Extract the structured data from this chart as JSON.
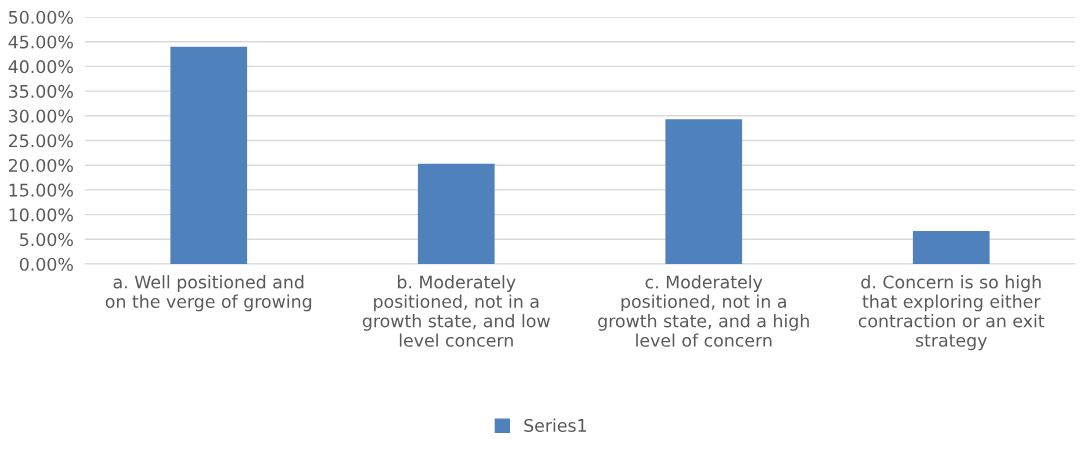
{
  "chart_data": {
    "type": "bar",
    "categories": [
      "a. Well positioned and on the verge of growing",
      "b. Moderately positioned, not in a growth state, and low level concern",
      "c. Moderately positioned, not in a growth state, and a high level of concern",
      "d. Concern is so high that exploring either contraction or an exit strategy"
    ],
    "series": [
      {
        "name": "Series1",
        "color": "#4f81bd",
        "values": [
          44.0,
          20.3,
          29.3,
          6.7
        ]
      }
    ],
    "ylim": [
      0,
      50
    ],
    "yticks": [
      {
        "value": 0,
        "label": "0.00%"
      },
      {
        "value": 5,
        "label": "5.00%"
      },
      {
        "value": 10,
        "label": "10.00%"
      },
      {
        "value": 15,
        "label": "15.00%"
      },
      {
        "value": 20,
        "label": "20.00%"
      },
      {
        "value": 25,
        "label": "25.00%"
      },
      {
        "value": 30,
        "label": "30.00%"
      },
      {
        "value": 35,
        "label": "35.00%"
      },
      {
        "value": 40,
        "label": "40.00%"
      },
      {
        "value": 45,
        "label": "45.00%"
      },
      {
        "value": 50,
        "label": "50.00%"
      }
    ],
    "grid": "y",
    "legend": "bottom"
  }
}
